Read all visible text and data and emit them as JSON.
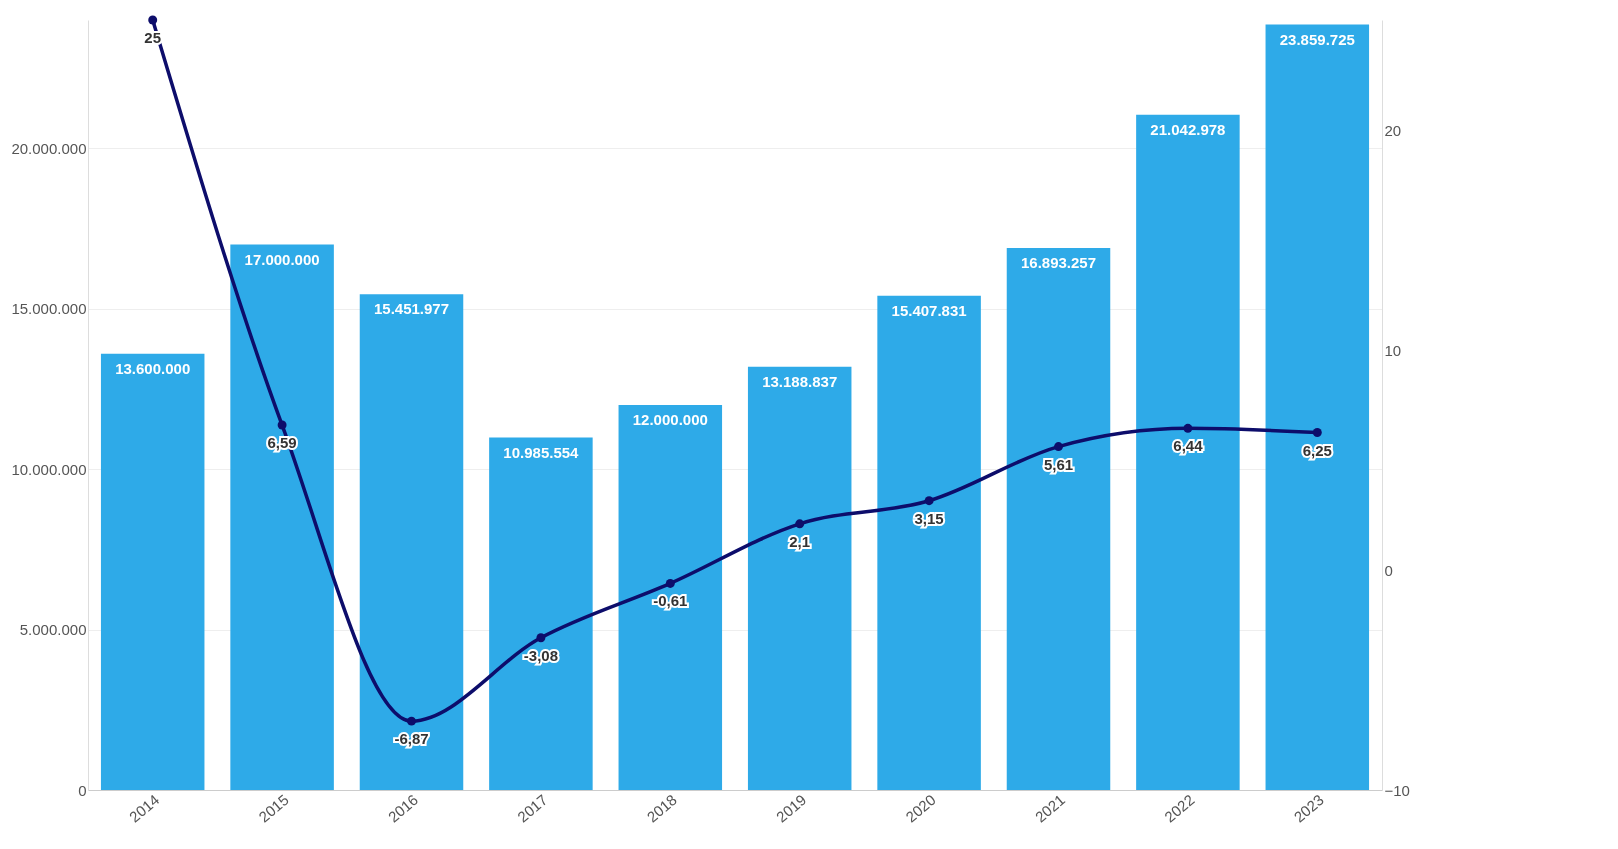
{
  "chart_data": {
    "type": "bar",
    "categories": [
      "2014",
      "2015",
      "2016",
      "2017",
      "2018",
      "2019",
      "2020",
      "2021",
      "2022",
      "2023"
    ],
    "series": [
      {
        "color": "#2eaae8",
        "values": [
          13600000,
          17000000,
          15451977,
          10985554,
          12000000,
          13188837,
          15407831,
          16893257,
          21042978,
          23859725
        ],
        "value_labels": [
          "13.600.000",
          "17.000.000",
          "15.451.977",
          "10.985.554",
          "12.000.000",
          "13.188.837",
          "15.407.831",
          "16.893.257",
          "21.042.978",
          "23.859.725"
        ]
      },
      {
        "type": "line",
        "axis": "y2",
        "color": "#0d0d6b",
        "marker": "circle",
        "values": [
          25,
          6.59,
          -6.87,
          -3.08,
          -0.61,
          2.1,
          3.15,
          5.61,
          6.44,
          6.25
        ],
        "value_labels": [
          "25",
          "6,59",
          "-6,87",
          "-3,08",
          "-0,61",
          "2,1",
          "3,15",
          "5,61",
          "6,44",
          "6,25"
        ]
      }
    ],
    "ylim": [
      0,
      24000000
    ],
    "yticks": [
      {
        "value": 0,
        "label": "0"
      },
      {
        "value": 5000000,
        "label": "5.000.000"
      },
      {
        "value": 10000000,
        "label": "10.000.000"
      },
      {
        "value": 15000000,
        "label": "15.000.000"
      },
      {
        "value": 20000000,
        "label": "20.000.000"
      }
    ],
    "y2lim": [
      -10,
      25
    ],
    "y2ticks": [
      -10,
      0,
      10,
      20
    ],
    "grid": "y"
  }
}
